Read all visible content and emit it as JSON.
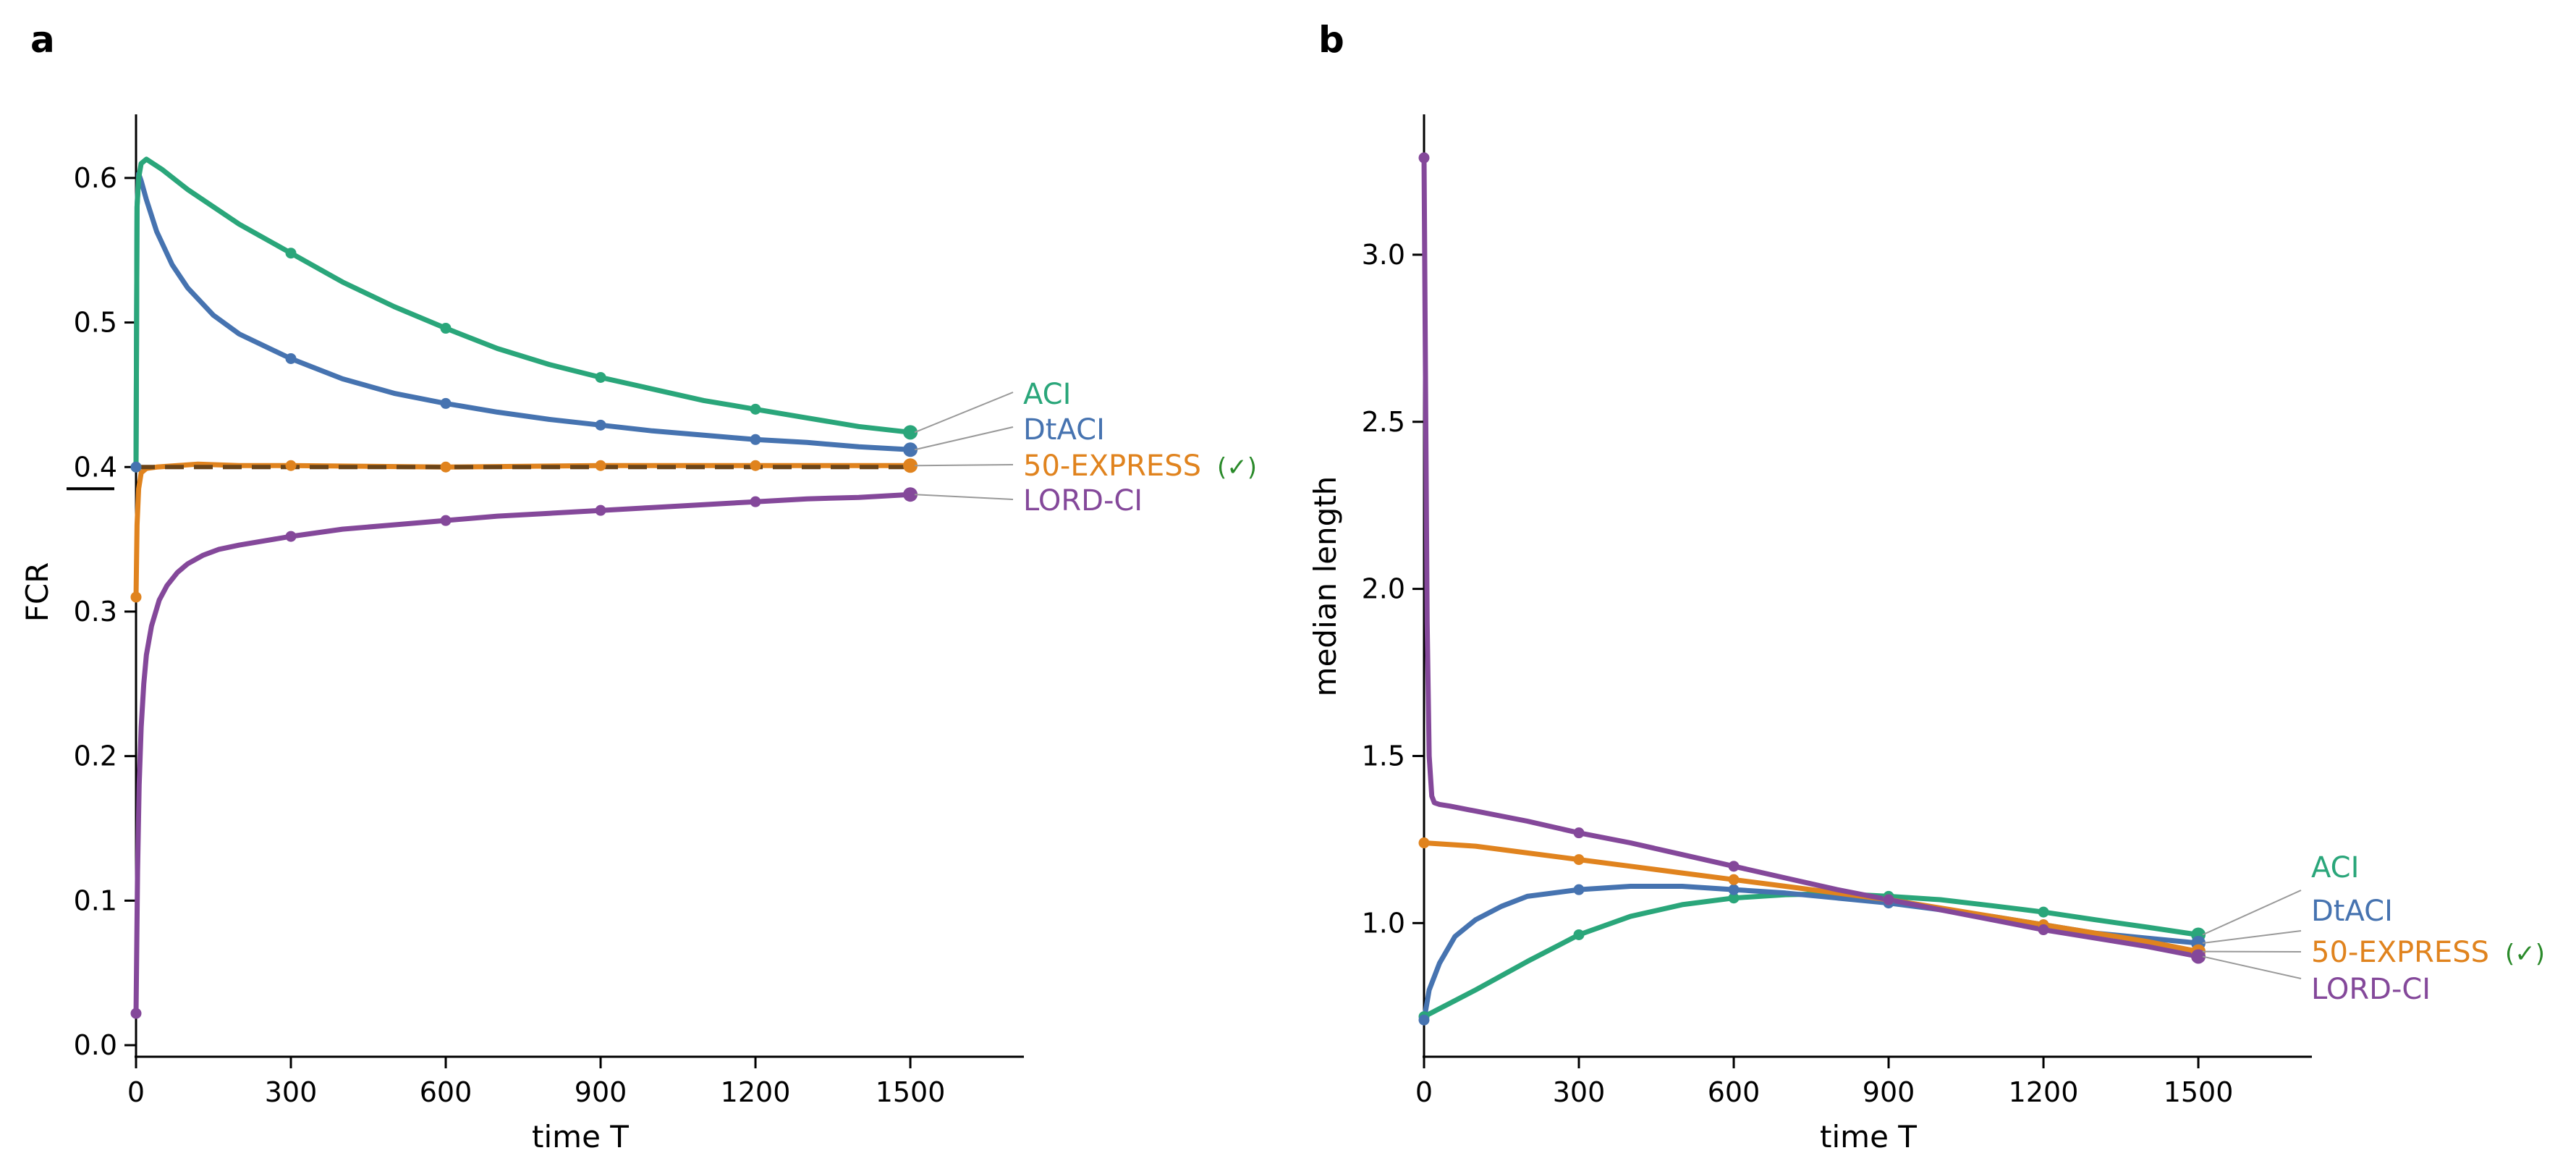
{
  "colors": {
    "ACI": "#2aa67a",
    "DtACI": "#4673b0",
    "EXPRESS": "#e0831e",
    "LORD": "#84489a",
    "check": "#2a8a2a",
    "axis": "#000000",
    "leader": "#999999",
    "target": "#6b4418"
  },
  "chart_data": [
    {
      "type": "line",
      "panel_label": "a",
      "xlabel": "time T",
      "ylabel": "FCR",
      "xlim": [
        0,
        1720
      ],
      "ylim": [
        -0.008,
        0.644
      ],
      "xticks": [
        0,
        300,
        600,
        900,
        1200,
        1500
      ],
      "xtick_labels": [
        "0",
        "300",
        "600",
        "900",
        "1200",
        "1500"
      ],
      "yticks": [
        0.0,
        0.1,
        0.2,
        0.3,
        0.4,
        0.5,
        0.6
      ],
      "ytick_labels": [
        "0.0",
        "0.1",
        "0.2",
        "0.3",
        "0.4",
        "0.5",
        "0.6"
      ],
      "target_line": 0.4,
      "marker_x": [
        0,
        300,
        600,
        900,
        1200,
        1500
      ],
      "series": [
        {
          "name": "ACI",
          "color_key": "ACI",
          "label": "ACI",
          "x": [
            0,
            2,
            5,
            10,
            20,
            50,
            100,
            200,
            300,
            400,
            500,
            600,
            700,
            800,
            900,
            1000,
            1100,
            1200,
            1300,
            1400,
            1500
          ],
          "y": [
            0.4,
            0.58,
            0.6,
            0.61,
            0.613,
            0.606,
            0.592,
            0.568,
            0.548,
            0.528,
            0.511,
            0.496,
            0.482,
            0.471,
            0.462,
            0.454,
            0.446,
            0.44,
            0.434,
            0.428,
            0.424
          ]
        },
        {
          "name": "DtACI",
          "color_key": "DtACI",
          "label": "DtACI",
          "x": [
            0,
            2,
            5,
            10,
            20,
            40,
            70,
            100,
            150,
            200,
            300,
            400,
            500,
            600,
            700,
            800,
            900,
            1000,
            1100,
            1200,
            1300,
            1400,
            1500
          ],
          "y": [
            0.4,
            0.58,
            0.603,
            0.598,
            0.585,
            0.563,
            0.54,
            0.524,
            0.505,
            0.492,
            0.475,
            0.461,
            0.451,
            0.444,
            0.438,
            0.433,
            0.429,
            0.425,
            0.422,
            0.419,
            0.417,
            0.414,
            0.412
          ]
        },
        {
          "name": "50-EXPRESS",
          "color_key": "EXPRESS",
          "label": "50-EXPRESS",
          "check": "(✓)",
          "x": [
            0,
            2,
            5,
            10,
            20,
            40,
            80,
            120,
            200,
            300,
            600,
            900,
            1200,
            1500
          ],
          "y": [
            0.31,
            0.36,
            0.385,
            0.396,
            0.399,
            0.4,
            0.401,
            0.402,
            0.401,
            0.401,
            0.4,
            0.401,
            0.401,
            0.401
          ]
        },
        {
          "name": "LORD-CI",
          "color_key": "LORD",
          "label": "LORD-CI",
          "x": [
            0,
            3,
            6,
            10,
            15,
            20,
            30,
            45,
            60,
            80,
            100,
            130,
            160,
            200,
            250,
            300,
            400,
            500,
            600,
            700,
            800,
            900,
            1000,
            1100,
            1200,
            1300,
            1400,
            1500
          ],
          "y": [
            0.022,
            0.12,
            0.18,
            0.22,
            0.25,
            0.27,
            0.29,
            0.308,
            0.318,
            0.327,
            0.333,
            0.339,
            0.343,
            0.346,
            0.349,
            0.352,
            0.357,
            0.36,
            0.363,
            0.366,
            0.368,
            0.37,
            0.372,
            0.374,
            0.376,
            0.378,
            0.379,
            0.381
          ]
        }
      ]
    },
    {
      "type": "line",
      "panel_label": "b",
      "xlabel": "time T",
      "ylabel": "median length",
      "xlim": [
        0,
        1720
      ],
      "ylim": [
        0.6,
        3.42
      ],
      "xticks": [
        0,
        300,
        600,
        900,
        1200,
        1500
      ],
      "xtick_labels": [
        "0",
        "300",
        "600",
        "900",
        "1200",
        "1500"
      ],
      "yticks": [
        1.0,
        1.5,
        2.0,
        2.5,
        3.0
      ],
      "ytick_labels": [
        "1.0",
        "1.5",
        "2.0",
        "2.5",
        "3.0"
      ],
      "marker_x": [
        0,
        300,
        600,
        900,
        1200,
        1500
      ],
      "series": [
        {
          "name": "ACI",
          "color_key": "ACI",
          "label": "ACI",
          "x": [
            0,
            50,
            100,
            200,
            300,
            400,
            500,
            600,
            700,
            800,
            900,
            1000,
            1100,
            1200,
            1300,
            1400,
            1500
          ],
          "y": [
            0.72,
            0.76,
            0.8,
            0.885,
            0.965,
            1.02,
            1.055,
            1.075,
            1.085,
            1.088,
            1.08,
            1.07,
            1.052,
            1.033,
            1.01,
            0.988,
            0.965
          ]
        },
        {
          "name": "DtACI",
          "color_key": "DtACI",
          "label": "DtACI",
          "x": [
            0,
            10,
            30,
            60,
            100,
            150,
            200,
            300,
            400,
            500,
            600,
            700,
            800,
            900,
            1000,
            1100,
            1200,
            1300,
            1400,
            1500
          ],
          "y": [
            0.71,
            0.8,
            0.88,
            0.96,
            1.01,
            1.05,
            1.08,
            1.1,
            1.11,
            1.11,
            1.1,
            1.09,
            1.075,
            1.06,
            1.04,
            1.02,
            0.995,
            0.97,
            0.955,
            0.94
          ]
        },
        {
          "name": "50-EXPRESS",
          "color_key": "EXPRESS",
          "label": "50-EXPRESS",
          "check": "(✓)",
          "x": [
            0,
            100,
            200,
            300,
            400,
            500,
            600,
            700,
            800,
            900,
            1000,
            1100,
            1200,
            1300,
            1400,
            1500
          ],
          "y": [
            1.24,
            1.23,
            1.21,
            1.19,
            1.17,
            1.15,
            1.13,
            1.11,
            1.09,
            1.07,
            1.045,
            1.02,
            0.995,
            0.97,
            0.945,
            0.915
          ]
        },
        {
          "name": "LORD-CI",
          "color_key": "LORD",
          "label": "LORD-CI",
          "x": [
            0,
            3,
            6,
            10,
            15,
            20,
            30,
            50,
            100,
            200,
            300,
            400,
            500,
            600,
            700,
            800,
            900,
            1000,
            1100,
            1200,
            1300,
            1400,
            1500
          ],
          "y": [
            3.29,
            2.6,
            1.9,
            1.5,
            1.38,
            1.36,
            1.355,
            1.35,
            1.335,
            1.305,
            1.27,
            1.24,
            1.205,
            1.17,
            1.135,
            1.1,
            1.07,
            1.04,
            1.01,
            0.98,
            0.955,
            0.93,
            0.9
          ]
        }
      ]
    }
  ]
}
